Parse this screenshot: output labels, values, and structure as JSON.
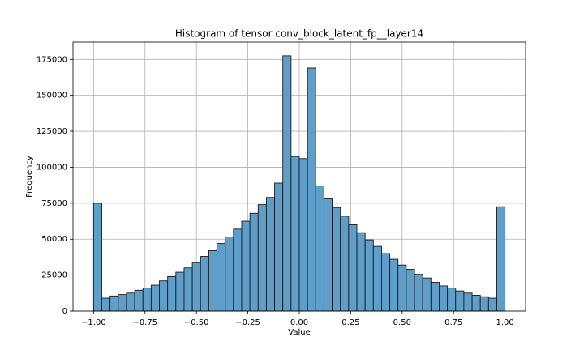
{
  "chart_data": {
    "type": "histogram",
    "title": "Histogram of tensor conv_block_latent_fp__layer14",
    "x_label": "Value",
    "y_label": "Frequency",
    "bins": [
      -1,
      -0.96,
      -0.92,
      -0.88,
      -0.84,
      -0.8,
      -0.76,
      -0.72,
      -0.68,
      -0.64,
      -0.6,
      -0.56,
      -0.52,
      -0.48,
      -0.44,
      -0.4,
      -0.36,
      -0.32,
      -0.28,
      -0.24,
      -0.2,
      -0.16,
      -0.12,
      -0.08,
      -0.04,
      0,
      0.04,
      0.08,
      0.12,
      0.16,
      0.2,
      0.24,
      0.28,
      0.32,
      0.36,
      0.4,
      0.44,
      0.48,
      0.52,
      0.56,
      0.6,
      0.64,
      0.68,
      0.72,
      0.76,
      0.8,
      0.84,
      0.88,
      0.92,
      0.96,
      1
    ],
    "counts": [
      75000,
      9000,
      10500,
      11500,
      12500,
      14500,
      16000,
      18000,
      21000,
      24000,
      27000,
      30000,
      34000,
      38000,
      42000,
      47000,
      51500,
      57000,
      62500,
      68000,
      74000,
      79000,
      89000,
      177500,
      107500,
      106000,
      169000,
      87000,
      78000,
      72000,
      66000,
      60000,
      54500,
      49500,
      45000,
      40000,
      36000,
      32000,
      29000,
      25500,
      23000,
      20000,
      17500,
      16000,
      14000,
      12500,
      11000,
      10000,
      9000,
      72500
    ],
    "color": "#5f9ec9",
    "edge_color": "#1a1a1a",
    "xlim": [
      -1.1,
      1.1
    ],
    "xticks": [
      {
        "value": -1,
        "label": "−1.00"
      },
      {
        "value": -0.75,
        "label": "−0.75"
      },
      {
        "value": -0.5,
        "label": "−0.50"
      },
      {
        "value": -0.25,
        "label": "−0.25"
      },
      {
        "value": 0,
        "label": "0.00"
      },
      {
        "value": 0.25,
        "label": "0.25"
      },
      {
        "value": 0.5,
        "label": "0.50"
      },
      {
        "value": 0.75,
        "label": "0.75"
      },
      {
        "value": 1,
        "label": "1.00"
      }
    ],
    "ylim": [
      0,
      187000
    ],
    "yticks": [
      0,
      25000,
      50000,
      75000,
      100000,
      125000,
      150000,
      175000
    ],
    "grid": true
  }
}
